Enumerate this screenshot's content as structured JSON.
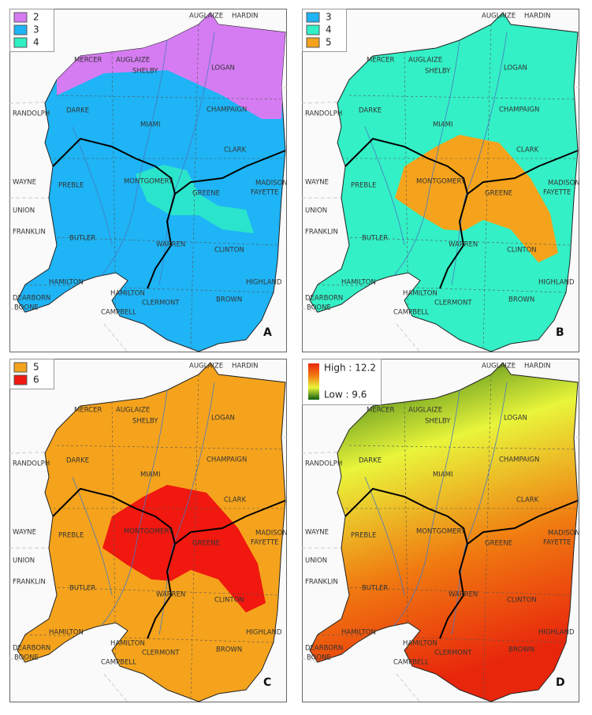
{
  "panels": [
    {
      "letter": "A",
      "legend": [
        {
          "label": "2",
          "color": "#d57cf2"
        },
        {
          "label": "3",
          "color": "#1eb4f5"
        },
        {
          "label": "4",
          "color": "#2ef0c2"
        }
      ]
    },
    {
      "letter": "B",
      "legend": [
        {
          "label": "3",
          "color": "#1eb4f5"
        },
        {
          "label": "4",
          "color": "#33f0c6"
        },
        {
          "label": "5",
          "color": "#f5a31c"
        }
      ]
    },
    {
      "letter": "C",
      "legend": [
        {
          "label": "5",
          "color": "#f5a31c"
        },
        {
          "label": "6",
          "color": "#f0180f"
        }
      ]
    },
    {
      "letter": "D",
      "high": "High : 12.2",
      "low": "Low : 9.6",
      "colors": [
        "#0b5e0f",
        "#e9f53a",
        "#f07a10",
        "#e8260c"
      ]
    }
  ],
  "counties": [
    "AUGLAIZE",
    "HARDIN",
    "MERCER",
    "AUGLAIZE",
    "SHELBY",
    "LOGAN",
    "RANDOLPH",
    "DARKE",
    "CHAMPAIGN",
    "MIAMI",
    "CLARK",
    "WAYNE",
    "PREBLE",
    "MONTGOMERY",
    "GREENE",
    "MADISON",
    "FAYETTE",
    "UNION",
    "FRANKLIN",
    "BUTLER",
    "WARREN",
    "CLINTON",
    "HAMILTON",
    "HIGHLAND",
    "DEARBORN",
    "BOONE",
    "HAMILTON",
    "CLERMONT",
    "BROWN",
    "CAMPBELL"
  ]
}
